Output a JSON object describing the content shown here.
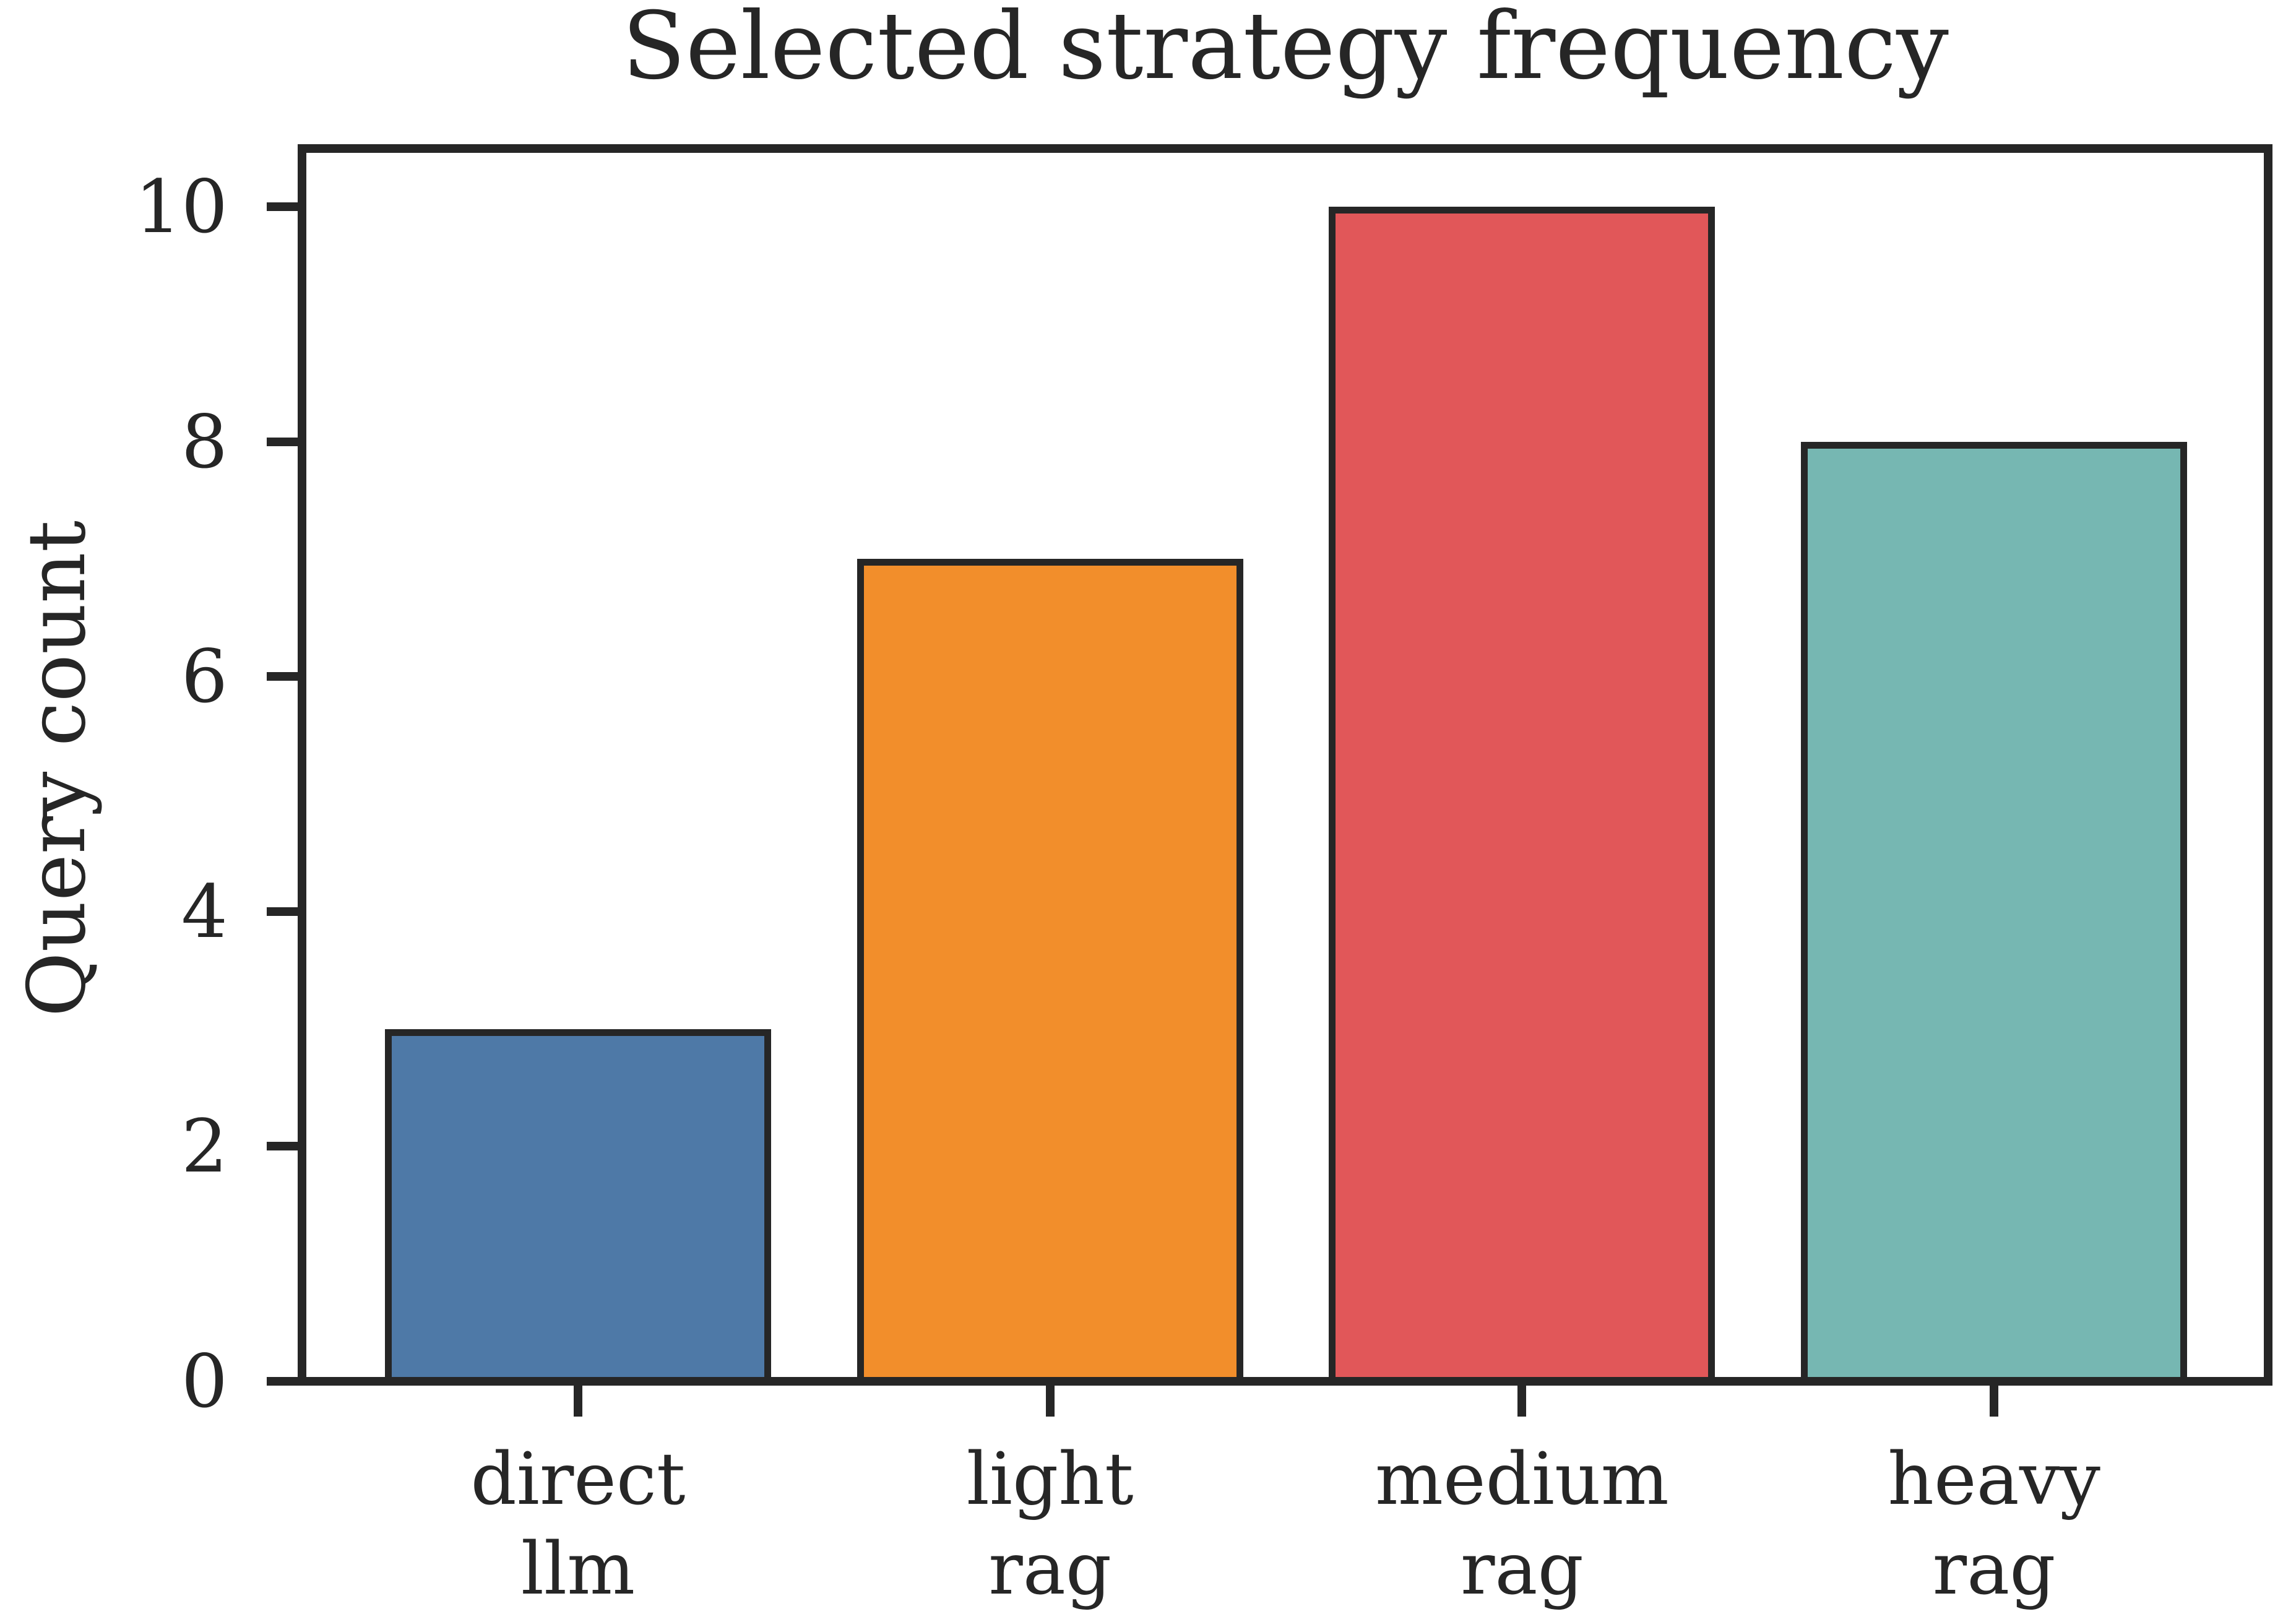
{
  "chart_data": {
    "type": "bar",
    "title": "Selected strategy frequency",
    "xlabel": "",
    "ylabel": "Query count",
    "categories": [
      "direct\nllm",
      "light\nrag",
      "medium\nrag",
      "heavy\nrag"
    ],
    "values": [
      3,
      7,
      10,
      8
    ],
    "bar_colors": [
      "#4E79A7",
      "#F28E2B",
      "#E15759",
      "#76B7B2"
    ],
    "bar_edge_color": "#262626",
    "axis_color": "#262626",
    "text_color": "#262626",
    "background_color": "#FFFFFF",
    "yticks": [
      0,
      2,
      4,
      6,
      8,
      10
    ],
    "ytick_labels": [
      "0",
      "2",
      "4",
      "6",
      "8",
      "10"
    ],
    "ylim": [
      0,
      10.54
    ],
    "grid": false,
    "legend": null,
    "bar_width_fraction": 0.82
  }
}
